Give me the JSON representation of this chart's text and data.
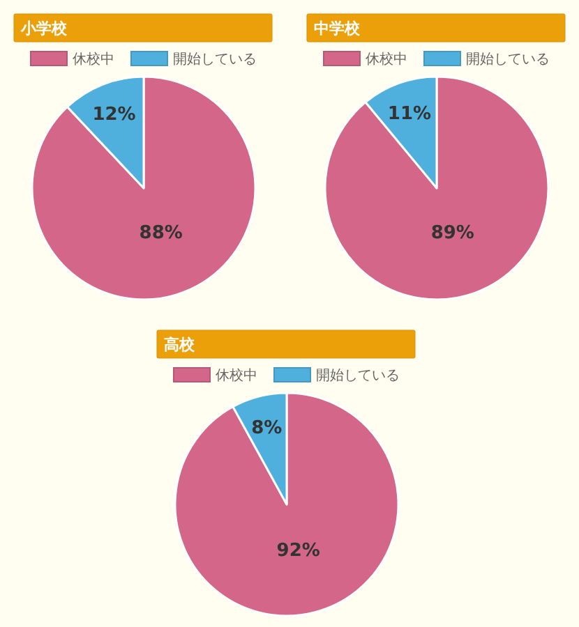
{
  "chart_data": [
    {
      "type": "pie",
      "title": "小学校",
      "categories": [
        "休校中",
        "開始している"
      ],
      "values": [
        88,
        12
      ],
      "colors": [
        "#d4668a",
        "#4fb0dd"
      ],
      "value_labels": [
        "88%",
        "12%"
      ],
      "legend": "top"
    },
    {
      "type": "pie",
      "title": "中学校",
      "categories": [
        "休校中",
        "開始している"
      ],
      "values": [
        89,
        11
      ],
      "colors": [
        "#d4668a",
        "#4fb0dd"
      ],
      "value_labels": [
        "89%",
        "11%"
      ],
      "legend": "top"
    },
    {
      "type": "pie",
      "title": "高校",
      "categories": [
        "休校中",
        "開始している"
      ],
      "values": [
        92,
        8
      ],
      "colors": [
        "#d4668a",
        "#4fb0dd"
      ],
      "value_labels": [
        "92%",
        "8%"
      ],
      "legend": "top"
    }
  ]
}
